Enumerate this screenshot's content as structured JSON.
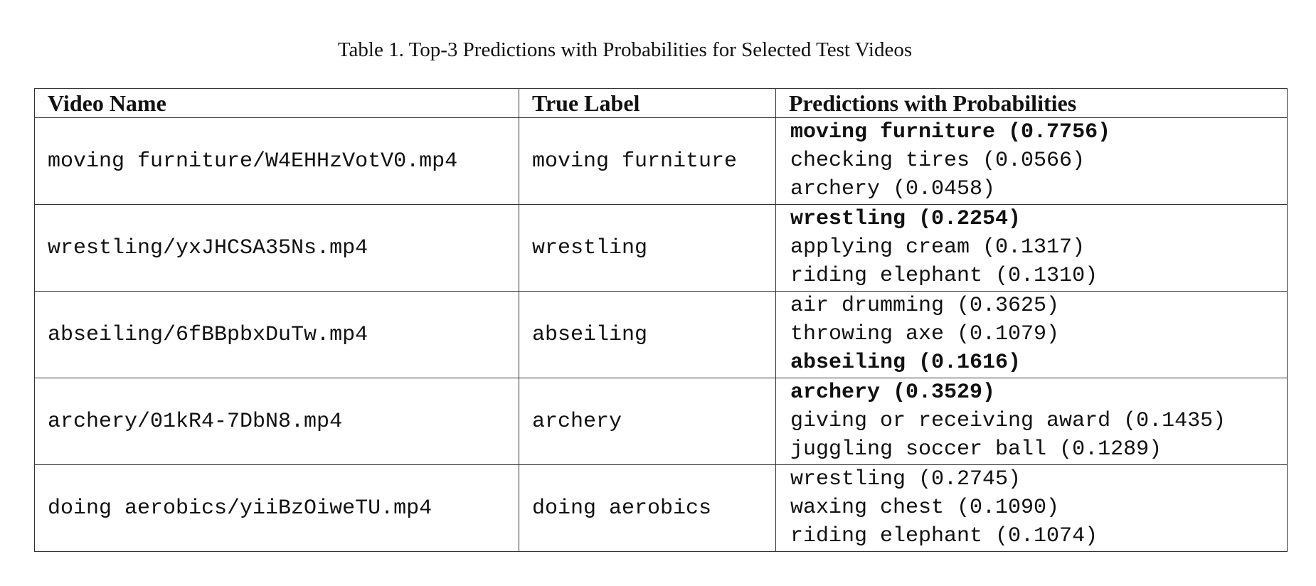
{
  "caption": "Table 1. Top-3 Predictions with Probabilities for Selected Test Videos",
  "columns": [
    "Video Name",
    "True Label",
    "Predictions with Probabilities"
  ],
  "rows": [
    {
      "video": "moving furniture/W4EHHzVotV0.mp4",
      "label": "moving furniture",
      "preds": [
        {
          "text": "moving furniture (0.7756)",
          "correct": true
        },
        {
          "text": "checking tires (0.0566)",
          "correct": false
        },
        {
          "text": "archery (0.0458)",
          "correct": false
        }
      ]
    },
    {
      "video": "wrestling/yxJHCSA35Ns.mp4",
      "label": "wrestling",
      "preds": [
        {
          "text": "wrestling (0.2254)",
          "correct": true
        },
        {
          "text": "applying cream (0.1317)",
          "correct": false
        },
        {
          "text": "riding elephant (0.1310)",
          "correct": false
        }
      ]
    },
    {
      "video": "abseiling/6fBBpbxDuTw.mp4",
      "label": "abseiling",
      "preds": [
        {
          "text": "air drumming (0.3625)",
          "correct": false
        },
        {
          "text": "throwing axe (0.1079)",
          "correct": false
        },
        {
          "text": "abseiling (0.1616)",
          "correct": true
        }
      ]
    },
    {
      "video": "archery/01kR4-7DbN8.mp4",
      "label": "archery",
      "preds": [
        {
          "text": "archery (0.3529)",
          "correct": true
        },
        {
          "text": "giving or receiving award (0.1435)",
          "correct": false
        },
        {
          "text": "juggling soccer ball (0.1289)",
          "correct": false
        }
      ]
    },
    {
      "video": "doing aerobics/yiiBzOiweTU.mp4",
      "label": "doing aerobics",
      "preds": [
        {
          "text": "wrestling (0.2745)",
          "correct": false
        },
        {
          "text": "waxing chest (0.1090)",
          "correct": false
        },
        {
          "text": "riding elephant (0.1074)",
          "correct": false
        }
      ]
    }
  ]
}
